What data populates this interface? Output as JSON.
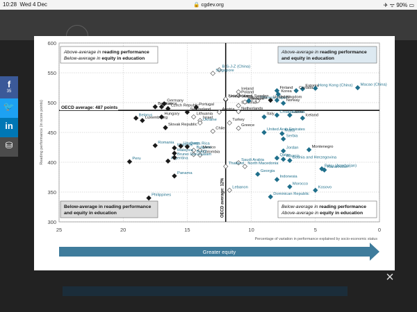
{
  "status_bar": {
    "time": "10:28",
    "date": "Wed 4 Dec",
    "url": "cgdev.org",
    "battery": "90%"
  },
  "share": [
    {
      "name": "facebook",
      "glyph": "f",
      "count": "35"
    },
    {
      "name": "twitter",
      "glyph": "t"
    },
    {
      "name": "linkedin",
      "glyph": "in"
    },
    {
      "name": "save",
      "glyph": "⛁"
    }
  ],
  "close_icon": "×",
  "background_footer": {
    "arrow_label": "Greater equity",
    "xlabel": "Percentage of variation in performance explained by socio-economic status"
  },
  "colors": {
    "teal": "#1f6f8b",
    "dark": "#1a1a1a",
    "arrow": "#3f7c9c"
  },
  "chart_data": {
    "type": "scatter",
    "xlabel": "Percentage of variation in performance explained by socio-economic status",
    "ylabel": "Reading performance (in score points)",
    "xlim": [
      25,
      0
    ],
    "ylim": [
      300,
      600
    ],
    "x_ticks": [
      "25",
      "20",
      "15",
      "10",
      "5",
      "0"
    ],
    "y_ticks": [
      "600",
      "550",
      "500",
      "450",
      "400",
      "350",
      "300"
    ],
    "oecd_average_label": "OECD average: 487 points",
    "oecd_average_y": 487,
    "oecd_equity_label": "OECD average: 12%",
    "oecd_equity_x": 12,
    "quadrants": {
      "top_left": {
        "lines": [
          [
            "Above-average in ",
            "reading performance"
          ],
          [
            "Below-average in ",
            "equity in education"
          ]
        ]
      },
      "top_right": {
        "lines": [
          [
            "Above-average in ",
            "reading performance"
          ],
          [
            "and equity in education"
          ]
        ]
      },
      "bottom_left": {
        "lines": [
          [
            "Below-average in reading performance"
          ],
          [
            "and equity in education"
          ]
        ]
      },
      "bottom_right": {
        "lines": [
          [
            "Below-average in ",
            "reading performance"
          ],
          [
            "Above-average in ",
            "equity in education"
          ]
        ]
      }
    },
    "arrow_label": "Greater equity",
    "points": [
      {
        "name": "B-S-J-Z (China)",
        "x": 12.5,
        "y": 555,
        "style": "outline",
        "label_color": "teal"
      },
      {
        "name": "Singapore",
        "x": 13.0,
        "y": 549,
        "style": "outline",
        "label_color": "teal"
      },
      {
        "name": "Ireland",
        "x": 11.0,
        "y": 518,
        "style": "outline",
        "label_color": "dark"
      },
      {
        "name": "United Kingdom",
        "x": 8.5,
        "y": 504,
        "style": "filled",
        "label_color": "dark"
      },
      {
        "name": "Poland",
        "x": 11.0,
        "y": 512,
        "style": "outline",
        "label_color": "dark"
      },
      {
        "name": "Sweden",
        "x": 10.0,
        "y": 506,
        "style": "outline",
        "label_color": "dark"
      },
      {
        "name": "Chinese Taipei",
        "x": 9.5,
        "y": 503,
        "style": "outline",
        "label_color": "teal"
      },
      {
        "name": "Estonia",
        "x": 6.0,
        "y": 523,
        "style": "teal",
        "label_color": "dark"
      },
      {
        "name": "United States",
        "x": 12.0,
        "y": 505,
        "style": "filled",
        "label_color": "dark"
      },
      {
        "name": "Macao (China)",
        "x": 1.7,
        "y": 525,
        "style": "teal",
        "label_color": "teal"
      },
      {
        "name": "Canada",
        "x": 6.5,
        "y": 520,
        "style": "teal",
        "label_color": "dark"
      },
      {
        "name": "Hong Kong (China)",
        "x": 5.0,
        "y": 524,
        "style": "teal",
        "label_color": "teal"
      },
      {
        "name": "Finland",
        "x": 8.0,
        "y": 520,
        "style": "teal",
        "label_color": "dark"
      },
      {
        "name": "Korea",
        "x": 7.9,
        "y": 514,
        "style": "teal",
        "label_color": "dark"
      },
      {
        "name": "New Zealand",
        "x": 12.0,
        "y": 506,
        "style": "outline",
        "label_color": "dark"
      },
      {
        "name": "Slovenia",
        "x": 11.0,
        "y": 495,
        "style": "outline",
        "label_color": "dark"
      },
      {
        "name": "Czech Republic",
        "x": 16.5,
        "y": 490,
        "style": "filled",
        "label_color": "dark"
      },
      {
        "name": "Belgium",
        "x": 17.5,
        "y": 493,
        "style": "filled",
        "label_color": "dark"
      },
      {
        "name": "Germany",
        "x": 16.8,
        "y": 498,
        "style": "filled",
        "label_color": "dark"
      },
      {
        "name": "France",
        "x": 17.0,
        "y": 493,
        "style": "filled",
        "label_color": "dark"
      },
      {
        "name": "Portugal",
        "x": 14.3,
        "y": 492,
        "style": "filled",
        "label_color": "dark"
      },
      {
        "name": "Norway",
        "x": 7.5,
        "y": 499,
        "style": "teal",
        "label_color": "dark"
      },
      {
        "name": "Denmark",
        "x": 10.5,
        "y": 501,
        "style": "outline",
        "label_color": "dark"
      },
      {
        "name": "Australia",
        "x": 10.2,
        "y": 503,
        "style": "teal",
        "label_color": "dark"
      },
      {
        "name": "Japan",
        "x": 8.0,
        "y": 504,
        "style": "teal",
        "label_color": "dark"
      },
      {
        "name": "Latvia",
        "x": 7.0,
        "y": 479,
        "style": "teal",
        "label_color": "dark"
      },
      {
        "name": "Belarus",
        "x": 19.0,
        "y": 474,
        "style": "filled",
        "label_color": "teal"
      },
      {
        "name": "Luxembourg",
        "x": 18.5,
        "y": 470,
        "style": "filled",
        "label_color": "dark"
      },
      {
        "name": "Israel",
        "x": 14.0,
        "y": 470,
        "style": "outline",
        "label_color": "dark"
      },
      {
        "name": "Austria",
        "x": 12.5,
        "y": 484,
        "style": "outline",
        "label_color": "dark"
      },
      {
        "name": "Netherlands",
        "x": 11.0,
        "y": 485,
        "style": "outline",
        "label_color": "dark"
      },
      {
        "name": "Italy",
        "x": 9.0,
        "y": 476,
        "style": "teal",
        "label_color": "dark"
      },
      {
        "name": "Iceland",
        "x": 6.0,
        "y": 474,
        "style": "teal",
        "label_color": "dark"
      },
      {
        "name": "Hungary",
        "x": 17.0,
        "y": 476,
        "style": "filled",
        "label_color": "dark"
      },
      {
        "name": "Switzerland",
        "x": 15.0,
        "y": 484,
        "style": "filled",
        "label_color": "dark"
      },
      {
        "name": "Lithuania",
        "x": 14.5,
        "y": 476,
        "style": "outline",
        "label_color": "dark"
      },
      {
        "name": "Turkey",
        "x": 11.7,
        "y": 466,
        "style": "outline",
        "label_color": "dark"
      },
      {
        "name": "Russia",
        "x": 7.0,
        "y": 479,
        "style": "teal",
        "label_color": "teal"
      },
      {
        "name": "Croatia",
        "x": 8.0,
        "y": 479,
        "style": "teal",
        "label_color": "teal"
      },
      {
        "name": "Greece",
        "x": 11.0,
        "y": 457,
        "style": "outline",
        "label_color": "dark"
      },
      {
        "name": "Ukraine",
        "x": 14.0,
        "y": 466,
        "style": "outline",
        "label_color": "teal"
      },
      {
        "name": "Slovak Republic",
        "x": 16.7,
        "y": 458,
        "style": "filled",
        "label_color": "dark"
      },
      {
        "name": "Malta",
        "x": 7.6,
        "y": 448,
        "style": "teal",
        "label_color": "teal"
      },
      {
        "name": "Chile",
        "x": 13.0,
        "y": 452,
        "style": "outline",
        "label_color": "dark"
      },
      {
        "name": "United Arab Emirates",
        "x": 9.0,
        "y": 450,
        "style": "teal",
        "label_color": "teal"
      },
      {
        "name": "Serbia",
        "x": 7.5,
        "y": 439,
        "style": "teal",
        "label_color": "teal"
      },
      {
        "name": "Romania",
        "x": 17.5,
        "y": 428,
        "style": "filled",
        "label_color": "teal"
      },
      {
        "name": "Moldova",
        "x": 16.0,
        "y": 424,
        "style": "filled",
        "label_color": "teal"
      },
      {
        "name": "Uruguay",
        "x": 15.5,
        "y": 427,
        "style": "filled",
        "label_color": "teal"
      },
      {
        "name": "Costa Rica",
        "x": 15.0,
        "y": 426,
        "style": "filled",
        "label_color": "teal"
      },
      {
        "name": "Bulgaria",
        "x": 14.5,
        "y": 420,
        "style": "outline",
        "label_color": "teal"
      },
      {
        "name": "Mexico",
        "x": 14.0,
        "y": 420,
        "style": "outline",
        "label_color": "dark"
      },
      {
        "name": "Montenegro",
        "x": 5.5,
        "y": 421,
        "style": "teal",
        "label_color": "dark"
      },
      {
        "name": "Qatar",
        "x": 8.0,
        "y": 407,
        "style": "teal",
        "label_color": "teal"
      },
      {
        "name": "Jordan",
        "x": 7.5,
        "y": 419,
        "style": "teal",
        "label_color": "teal"
      },
      {
        "name": "Malaysia",
        "x": 16.0,
        "y": 415,
        "style": "filled",
        "label_color": "teal"
      },
      {
        "name": "Colombia",
        "x": 14.0,
        "y": 412,
        "style": "outline",
        "label_color": "dark"
      },
      {
        "name": "Argentina",
        "x": 16.5,
        "y": 402,
        "style": "filled",
        "label_color": "teal"
      },
      {
        "name": "Brazil",
        "x": 14.5,
        "y": 413,
        "style": "outline",
        "label_color": "teal"
      },
      {
        "name": "Peru",
        "x": 19.5,
        "y": 401,
        "style": "filled",
        "label_color": "teal"
      },
      {
        "name": "Bosnia and Herzegovina",
        "x": 7.0,
        "y": 403,
        "style": "teal",
        "label_color": "teal"
      },
      {
        "name": "Saudi Arabia",
        "x": 11.0,
        "y": 399,
        "style": "outline",
        "label_color": "teal"
      },
      {
        "name": "Thailand",
        "x": 12.0,
        "y": 393,
        "style": "outline",
        "label_color": "teal"
      },
      {
        "name": "Albania",
        "x": 7.5,
        "y": 405,
        "style": "teal",
        "label_color": "teal"
      },
      {
        "name": "Baku (Azerbaijan)",
        "x": 4.5,
        "y": 389,
        "style": "teal",
        "label_color": "teal"
      },
      {
        "name": "Kazakhstan",
        "x": 4.3,
        "y": 387,
        "style": "teal",
        "label_color": "teal"
      },
      {
        "name": "Brunei Darussalam",
        "x": 16.0,
        "y": 408,
        "style": "filled",
        "label_color": "teal"
      },
      {
        "name": "Panama",
        "x": 16.0,
        "y": 377,
        "style": "filled",
        "label_color": "teal"
      },
      {
        "name": "Georgia",
        "x": 9.5,
        "y": 380,
        "style": "teal",
        "label_color": "teal"
      },
      {
        "name": "Indonesia",
        "x": 8.0,
        "y": 371,
        "style": "teal",
        "label_color": "teal"
      },
      {
        "name": "Morocco",
        "x": 7.0,
        "y": 359,
        "style": "teal",
        "label_color": "teal"
      },
      {
        "name": "North Macedonia",
        "x": 10.5,
        "y": 393,
        "style": "outline",
        "label_color": "teal"
      },
      {
        "name": "Lebanon",
        "x": 11.7,
        "y": 353,
        "style": "outline",
        "label_color": "teal"
      },
      {
        "name": "Kosovo",
        "x": 5.0,
        "y": 353,
        "style": "teal",
        "label_color": "teal"
      },
      {
        "name": "Dominican Republic",
        "x": 8.5,
        "y": 342,
        "style": "teal",
        "label_color": "teal"
      },
      {
        "name": "Philippines",
        "x": 18.0,
        "y": 340,
        "style": "filled",
        "label_color": "teal"
      }
    ]
  }
}
